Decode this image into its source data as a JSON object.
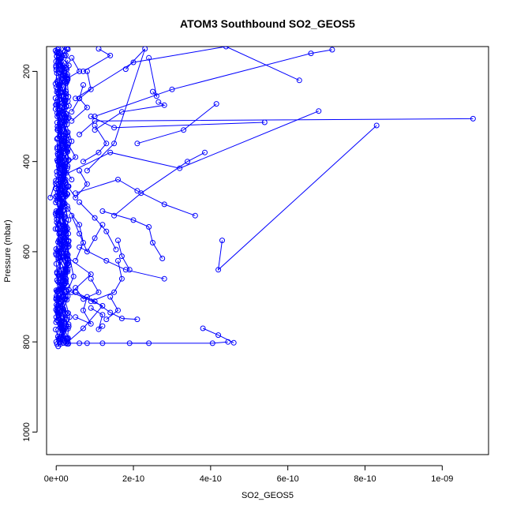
{
  "chart_data": {
    "type": "line",
    "title": "ATOM3 Southbound SO2_GEOS5",
    "xlabel": "SO2_GEOS5",
    "ylabel": "Pressure (mbar)",
    "xlim": [
      -2.5e-11,
      1.12e-09
    ],
    "ylim": [
      1050,
      145
    ],
    "y_reversed": true,
    "x_ticks": [
      0,
      2e-10,
      4e-10,
      6e-10,
      8e-10,
      1e-09
    ],
    "x_tick_labels": [
      "0e+00",
      "2e-10",
      "4e-10",
      "6e-10",
      "8e-10",
      "1e-09"
    ],
    "y_ticks": [
      200,
      400,
      600,
      800,
      1000
    ],
    "y_tick_labels": [
      "200",
      "400",
      "600",
      "800",
      "1000"
    ],
    "color": "#0000ff",
    "marker": "open-circle",
    "grid": false,
    "series": [
      {
        "x": [
          0,
          1.5e-11,
          5e-12,
          2e-11,
          8e-12,
          1e-11,
          3e-12,
          1.2e-11,
          6e-12,
          4e-12,
          2e-12
        ],
        "y": [
          800,
          770,
          740,
          700,
          650,
          600,
          550,
          500,
          450,
          400,
          350
        ]
      },
      {
        "x": [
          2e-12,
          1e-11,
          4e-12,
          1.8e-11,
          9e-12,
          2.5e-11,
          7e-12,
          1.4e-11,
          3e-12,
          8e-12
        ],
        "y": [
          805,
          780,
          720,
          680,
          620,
          560,
          480,
          420,
          300,
          220
        ]
      },
      {
        "x": [
          5e-12,
          2.2e-11,
          1.1e-11,
          3e-11,
          1.6e-11,
          9e-12,
          2.4e-11,
          1.2e-11,
          6e-12
        ],
        "y": [
          810,
          760,
          710,
          640,
          580,
          510,
          440,
          360,
          250
        ]
      },
      {
        "x": [
          -1.5e-11,
          3e-12,
          1.3e-11,
          4e-12,
          2.1e-11,
          7e-12,
          1.5e-11,
          5e-12
        ],
        "y": [
          480,
          430,
          380,
          330,
          280,
          230,
          190,
          160
        ]
      },
      {
        "x": [
          1e-11,
          2.8e-11,
          1.4e-11,
          3.3e-11,
          2e-11,
          1.1e-11,
          2.6e-11
        ],
        "y": [
          805,
          750,
          690,
          630,
          540,
          460,
          390
        ]
      },
      {
        "x": [
          2e-11,
          4e-12,
          1.7e-11,
          6e-12,
          2.3e-11,
          9e-12,
          1.9e-11,
          8e-12
        ],
        "y": [
          765,
          725,
          665,
          615,
          545,
          470,
          410,
          345
        ]
      },
      {
        "x": [
          1.2e-11,
          3.5e-11,
          2.2e-11,
          4.5e-11,
          3e-11,
          1.8e-11
        ],
        "y": [
          795,
          745,
          705,
          655,
          590,
          520
        ]
      },
      {
        "x": [
          5e-12,
          2.5e-11,
          1e-11,
          3.2e-11,
          1.5e-11,
          4e-11,
          2.2e-11
        ],
        "y": [
          600,
          555,
          505,
          455,
          405,
          355,
          305
        ]
      },
      {
        "x": [
          1.5e-11,
          3e-12,
          2.7e-11,
          1.1e-11,
          2.1e-11,
          6e-12
        ],
        "y": [
          270,
          240,
          210,
          185,
          165,
          150
        ]
      },
      {
        "x": [
          3e-11,
          7e-11,
          1.2e-10,
          4e-11,
          9e-11,
          2.5e-11
        ],
        "y": [
          800,
          770,
          720,
          690,
          650,
          610
        ]
      },
      {
        "x": [
          4.6e-10,
          4.2e-10,
          3.8e-10
        ],
        "y": [
          802,
          785,
          770
        ]
      },
      {
        "x": [
          4.45e-10,
          4.05e-10,
          1.9e-10
        ],
        "y": [
          800,
          803,
          803
        ]
      },
      {
        "x": [
          2.4e-10,
          1.2e-10,
          8e-11,
          6e-11,
          2.5e-11
        ],
        "y": [
          803,
          803,
          803,
          803,
          803
        ]
      },
      {
        "x": [
          4.3e-10,
          4.2e-10,
          8.3e-10
        ],
        "y": [
          575,
          640,
          320
        ]
      },
      {
        "x": [
          1.08e-09,
          1e-10,
          6e-11
        ],
        "y": [
          305,
          310,
          340
        ]
      },
      {
        "x": [
          6.8e-10,
          3.2e-10,
          1.4e-10,
          2e-11
        ],
        "y": [
          288,
          415,
          380,
          430
        ]
      },
      {
        "x": [
          5.4e-10,
          1.5e-10,
          9e-11
        ],
        "y": [
          313,
          325,
          300
        ]
      },
      {
        "x": [
          7.15e-10,
          6.6e-10,
          3e-10,
          1e-10
        ],
        "y": [
          152,
          160,
          240,
          300
        ]
      },
      {
        "x": [
          6.3e-10,
          4.4e-10,
          2e-10,
          5e-11
        ],
        "y": [
          220,
          145,
          180,
          260
        ]
      },
      {
        "x": [
          3.6e-10,
          2.8e-10,
          2.1e-10,
          1.6e-10,
          5e-11
        ],
        "y": [
          520,
          495,
          465,
          440,
          470
        ]
      },
      {
        "x": [
          2.8e-10,
          1.8e-10,
          1.3e-10,
          6e-11
        ],
        "y": [
          660,
          640,
          620,
          590
        ]
      },
      {
        "x": [
          2.75e-10,
          2.5e-10,
          2.4e-10,
          2e-10,
          1.2e-10
        ],
        "y": [
          615,
          580,
          545,
          530,
          510
        ]
      },
      {
        "x": [
          2.1e-10,
          1.7e-10,
          1.4e-10,
          1e-10,
          5e-11
        ],
        "y": [
          750,
          748,
          735,
          710,
          690
        ]
      },
      {
        "x": [
          3.85e-10,
          3.4e-10,
          2.2e-10,
          1.5e-10
        ],
        "y": [
          380,
          400,
          470,
          520
        ]
      },
      {
        "x": [
          4.15e-10,
          3.3e-10,
          2.1e-10
        ],
        "y": [
          272,
          330,
          360
        ]
      },
      {
        "x": [
          2.65e-10,
          2.8e-10,
          1.7e-10,
          1e-10
        ],
        "y": [
          268,
          275,
          290,
          330
        ]
      },
      {
        "x": [
          1.8e-10,
          2.3e-10,
          1.5e-10,
          8e-11
        ],
        "y": [
          195,
          150,
          360,
          420
        ]
      },
      {
        "x": [
          1.6e-10,
          1.7e-10,
          1.5e-10,
          9e-11
        ],
        "y": [
          620,
          660,
          690,
          710
        ]
      },
      {
        "x": [
          1.4e-10,
          1.6e-10,
          1.3e-10
        ],
        "y": [
          700,
          730,
          750
        ]
      },
      {
        "x": [
          1.2e-10,
          1.1e-10,
          1.2e-10,
          9e-11
        ],
        "y": [
          765,
          772,
          740,
          725
        ]
      },
      {
        "x": [
          1.2e-10,
          1e-10,
          8e-11,
          6e-11,
          4e-11
        ],
        "y": [
          540,
          570,
          600,
          560,
          520
        ]
      },
      {
        "x": [
          1e-10,
          1.3e-10,
          1.1e-10,
          7e-11
        ],
        "y": [
          320,
          360,
          380,
          400
        ]
      },
      {
        "x": [
          8e-11,
          9e-11,
          6e-11,
          4e-11
        ],
        "y": [
          200,
          240,
          260,
          290
        ]
      },
      {
        "x": [
          1.1e-10,
          1.4e-10,
          7e-11
        ],
        "y": [
          150,
          165,
          200
        ]
      },
      {
        "x": [
          2.5e-10,
          2.6e-10,
          2.4e-10
        ],
        "y": [
          245,
          255,
          170
        ]
      },
      {
        "x": [
          1.9e-10,
          1.7e-10,
          1.6e-10
        ],
        "y": [
          640,
          610,
          575
        ]
      },
      {
        "x": [
          1.55e-10,
          1.3e-10,
          1e-10,
          6e-11
        ],
        "y": [
          595,
          555,
          525,
          490
        ]
      },
      {
        "x": [
          8e-11,
          7e-11,
          9e-11,
          5e-11
        ],
        "y": [
          700,
          730,
          760,
          745
        ]
      },
      {
        "x": [
          5e-11,
          7e-11,
          6e-11,
          3e-11
        ],
        "y": [
          620,
          580,
          540,
          505
        ]
      },
      {
        "x": [
          6e-11,
          8e-11,
          5e-11,
          3e-11
        ],
        "y": [
          420,
          450,
          480,
          455
        ]
      },
      {
        "x": [
          7e-11,
          6e-11,
          8e-11,
          4e-11
        ],
        "y": [
          230,
          260,
          280,
          310
        ]
      },
      {
        "x": [
          4e-11,
          6e-11,
          3e-11
        ],
        "y": [
          170,
          200,
          215
        ]
      },
      {
        "x": [
          9e-11,
          1.1e-10,
          7e-11,
          5e-11
        ],
        "y": [
          660,
          690,
          705,
          680
        ]
      },
      {
        "x": [
          3e-11,
          5e-11,
          2e-11,
          4e-11
        ],
        "y": [
          360,
          390,
          410,
          440
        ]
      }
    ]
  }
}
